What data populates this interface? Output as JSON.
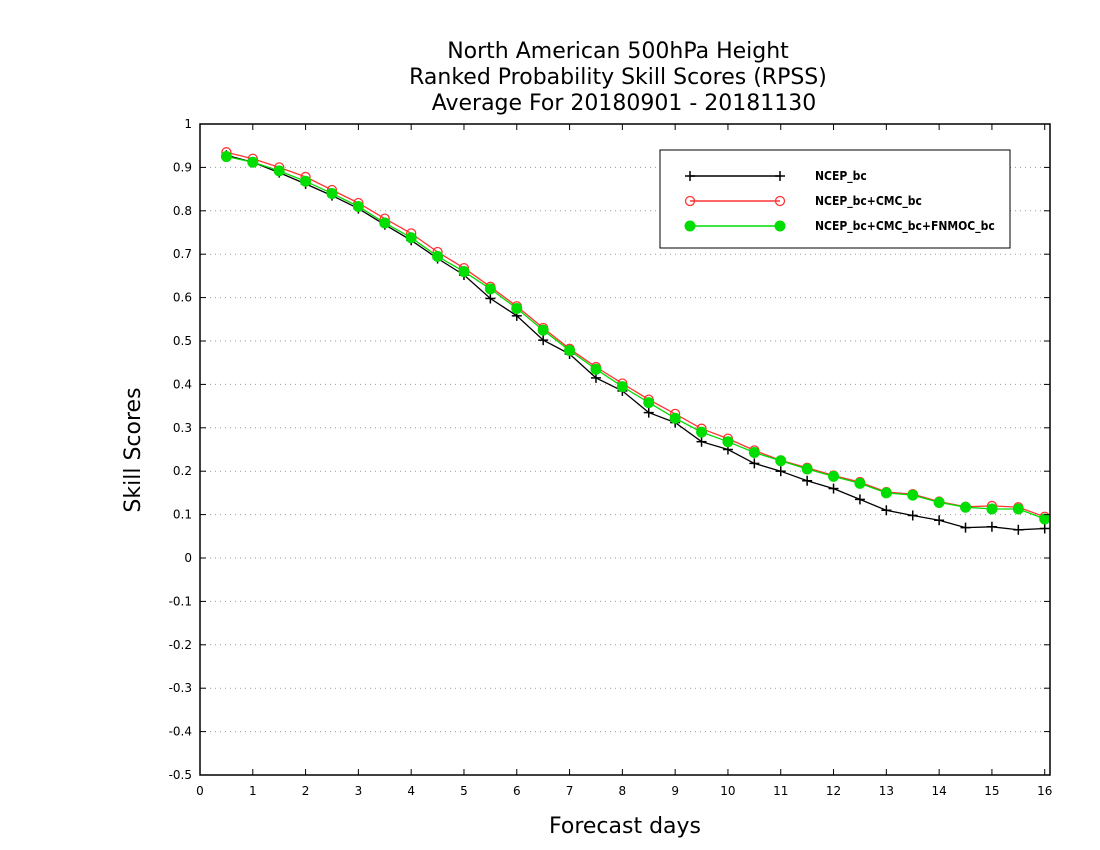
{
  "chart_data": {
    "type": "line",
    "title": [
      "North American 500hPa Height",
      "Ranked Probability Skill Scores (RPSS)",
      "Average For 20180901 - 20181130"
    ],
    "xlabel": "Forecast days",
    "ylabel": "Skill Scores",
    "xlim": [
      0,
      16.1
    ],
    "ylim": [
      -0.5,
      1
    ],
    "xticks": [
      0,
      1,
      2,
      3,
      4,
      5,
      6,
      7,
      8,
      9,
      10,
      11,
      12,
      13,
      14,
      15,
      16
    ],
    "yticks": [
      -0.5,
      -0.4,
      -0.3,
      -0.2,
      -0.1,
      0,
      0.1,
      0.2,
      0.3,
      0.4,
      0.5,
      0.6,
      0.7,
      0.8,
      0.9,
      1
    ],
    "ytick_labels": [
      "-0.5",
      "-0.4",
      "-0.3",
      "-0.2",
      "-0.1",
      "0",
      "0.1",
      "0.2",
      "0.3",
      "0.4",
      "0.5",
      "0.6",
      "0.7",
      "0.8",
      "0.9",
      "1"
    ],
    "grid": "horizontal-dotted",
    "legend_position": "top-right",
    "x": [
      0.5,
      1,
      1.5,
      2,
      2.5,
      3,
      3.5,
      4,
      4.5,
      5,
      5.5,
      6,
      6.5,
      7,
      7.5,
      8,
      8.5,
      9,
      9.5,
      10,
      10.5,
      11,
      11.5,
      12,
      12.5,
      13,
      13.5,
      14,
      14.5,
      15,
      15.5,
      16
    ],
    "series": [
      {
        "name": "NCEP_bc",
        "color": "#000000",
        "marker": "plus",
        "values": [
          0.928,
          0.912,
          0.888,
          0.862,
          0.835,
          0.805,
          0.768,
          0.732,
          0.69,
          0.652,
          0.598,
          0.558,
          0.502,
          0.47,
          0.415,
          0.385,
          0.335,
          0.312,
          0.268,
          0.25,
          0.218,
          0.2,
          0.178,
          0.16,
          0.135,
          0.11,
          0.098,
          0.087,
          0.07,
          0.072,
          0.065,
          0.068
        ]
      },
      {
        "name": "NCEP_bc+CMC_bc",
        "color": "#ff3333",
        "marker": "open-circle",
        "values": [
          0.935,
          0.92,
          0.9,
          0.878,
          0.848,
          0.818,
          0.782,
          0.748,
          0.705,
          0.668,
          0.625,
          0.58,
          0.53,
          0.482,
          0.44,
          0.402,
          0.365,
          0.332,
          0.298,
          0.275,
          0.248,
          0.225,
          0.208,
          0.19,
          0.175,
          0.152,
          0.147,
          0.13,
          0.118,
          0.12,
          0.117,
          0.095
        ]
      },
      {
        "name": "NCEP_bc+CMC_bc+FNMOC_bc",
        "color": "#00dd00",
        "marker": "filled-circle",
        "values": [
          0.925,
          0.912,
          0.892,
          0.868,
          0.84,
          0.81,
          0.772,
          0.738,
          0.695,
          0.66,
          0.62,
          0.575,
          0.525,
          0.478,
          0.435,
          0.395,
          0.358,
          0.322,
          0.29,
          0.268,
          0.243,
          0.224,
          0.205,
          0.188,
          0.172,
          0.15,
          0.145,
          0.128,
          0.117,
          0.113,
          0.113,
          0.09
        ]
      }
    ]
  }
}
